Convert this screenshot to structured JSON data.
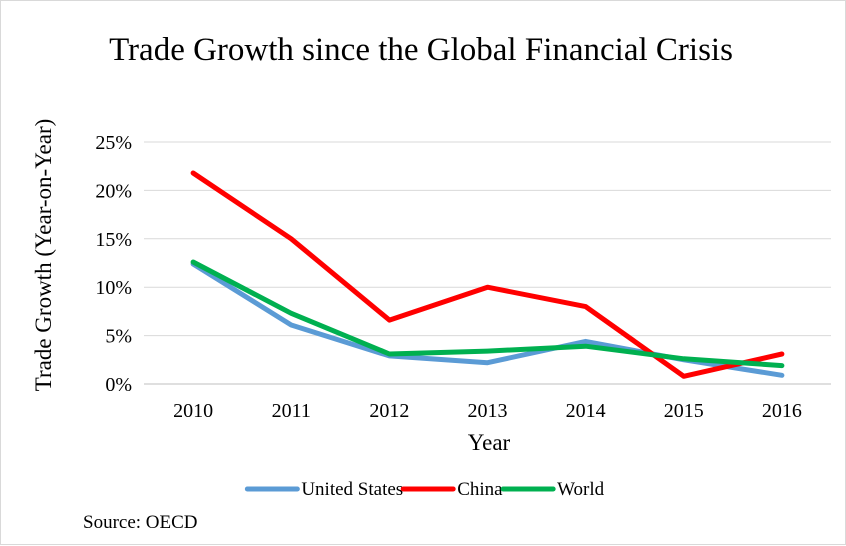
{
  "chart_data": {
    "type": "line",
    "title": "Trade Growth since the Global Financial Crisis",
    "xlabel": "Year",
    "ylabel": "Trade Growth (Year-on-Year)",
    "x": [
      "2010",
      "2011",
      "2012",
      "2013",
      "2014",
      "2015",
      "2016"
    ],
    "ylim": [
      0,
      25
    ],
    "yticks": [
      0,
      5,
      10,
      15,
      20,
      25
    ],
    "ytick_labels": [
      "0%",
      "5%",
      "10%",
      "15%",
      "20%",
      "25%"
    ],
    "grid": true,
    "legend": "bottom",
    "series": [
      {
        "name": "United States",
        "color": "#5B9BD5",
        "values": [
          12.4,
          6.1,
          2.9,
          2.2,
          4.4,
          2.5,
          0.9
        ]
      },
      {
        "name": "China",
        "color": "#FF0000",
        "values": [
          21.8,
          15.0,
          6.6,
          10.0,
          8.0,
          0.8,
          3.1
        ]
      },
      {
        "name": "World",
        "color": "#00B050",
        "values": [
          12.6,
          7.3,
          3.1,
          3.4,
          3.9,
          2.6,
          1.9
        ]
      }
    ]
  },
  "source": "Source: OECD"
}
